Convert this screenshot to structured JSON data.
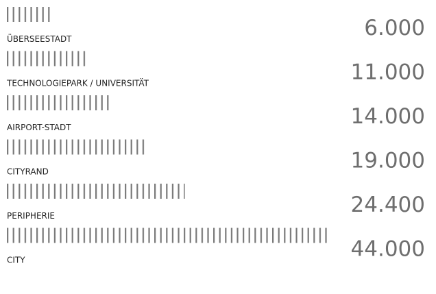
{
  "chart_data": {
    "type": "pictogram-bar",
    "categories": [
      "ÜBERSEESTADT",
      "TECHNOLOGIEPARK / UNIVERSITÄT",
      "AIRPORT-STADT",
      "CITYRAND",
      "PERIPHERIE",
      "CITY"
    ],
    "values": [
      6000,
      11000,
      14000,
      19000,
      24400,
      44000
    ],
    "value_labels": [
      "6.000",
      "11.000",
      "14.000",
      "19.000",
      "24.400",
      "44.000"
    ],
    "color": "#7a7a7a"
  }
}
